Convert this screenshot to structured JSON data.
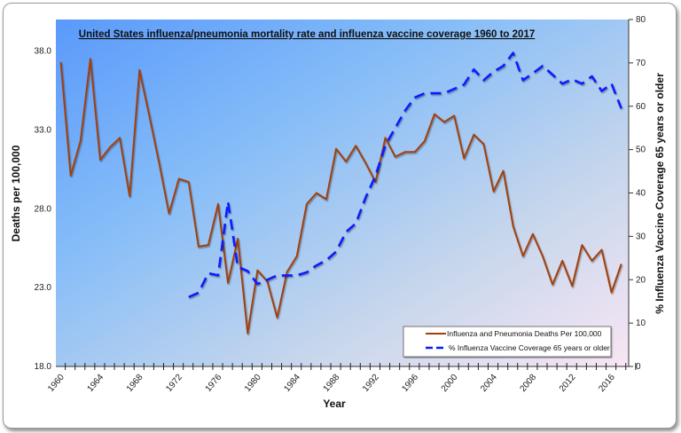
{
  "chart_data": {
    "type": "line",
    "title": "United States influenza/pneumonia mortality rate and influenza vaccine coverage 1960 to 2017",
    "xlabel": "Year",
    "ylabel": "Deaths per 100,000",
    "y2label": "% Influenza Vaccine Coverage 65 years or older",
    "xlim": [
      1960,
      2017
    ],
    "ylim": [
      18,
      40
    ],
    "y2lim": [
      0,
      80
    ],
    "x_tick_labels": [
      "1960",
      "1964",
      "1968",
      "1972",
      "1976",
      "1980",
      "1984",
      "1988",
      "1992",
      "1996",
      "2000",
      "2004",
      "2008",
      "2012",
      "2016"
    ],
    "y_tick_labels": [
      "18.0",
      "23.0",
      "28.0",
      "33.0",
      "38.0"
    ],
    "y2_tick_labels": [
      "0",
      "10",
      "20",
      "30",
      "40",
      "50",
      "60",
      "70",
      "80"
    ],
    "legend_position": "bottom-right",
    "grid": false,
    "series": [
      {
        "name": "Influenza and Pneumonia Deaths Per 100,000",
        "axis": "left",
        "color": "#a0400f",
        "style": "solid",
        "x": [
          1960,
          1961,
          1962,
          1963,
          1964,
          1965,
          1966,
          1967,
          1968,
          1969,
          1970,
          1971,
          1972,
          1973,
          1974,
          1975,
          1976,
          1977,
          1978,
          1979,
          1980,
          1981,
          1982,
          1983,
          1984,
          1985,
          1986,
          1987,
          1988,
          1989,
          1990,
          1991,
          1992,
          1993,
          1994,
          1995,
          1996,
          1997,
          1998,
          1999,
          2000,
          2001,
          2002,
          2003,
          2004,
          2005,
          2006,
          2007,
          2008,
          2009,
          2010,
          2011,
          2012,
          2013,
          2014,
          2015,
          2016,
          2017
        ],
        "values": [
          37.3,
          30.1,
          32.3,
          37.5,
          31.1,
          31.9,
          32.5,
          28.8,
          36.8,
          33.9,
          30.9,
          27.7,
          29.9,
          29.7,
          25.6,
          25.7,
          28.3,
          23.3,
          26.1,
          20.1,
          24.1,
          23.4,
          21.1,
          24.0,
          25.0,
          28.3,
          29.0,
          28.6,
          31.8,
          31.0,
          32.0,
          30.9,
          29.7,
          32.5,
          31.3,
          31.6,
          31.6,
          32.3,
          34.0,
          33.5,
          33.9,
          31.2,
          32.7,
          32.1,
          29.1,
          30.4,
          26.9,
          25.0,
          26.4,
          25.0,
          23.2,
          24.7,
          23.1,
          25.7,
          24.7,
          25.4,
          22.7,
          24.5
        ]
      },
      {
        "name": "% Influenza Vaccine Coverage 65 years or older",
        "axis": "right",
        "color": "#0a1aff",
        "style": "dashed",
        "x": [
          1973,
          1974,
          1975,
          1976,
          1977,
          1978,
          1979,
          1980,
          1981,
          1982,
          1983,
          1984,
          1985,
          1986,
          1987,
          1988,
          1989,
          1990,
          1991,
          1992,
          1993,
          1994,
          1995,
          1996,
          1997,
          1998,
          1999,
          2000,
          2001,
          2002,
          2003,
          2004,
          2005,
          2006,
          2007,
          2008,
          2009,
          2010,
          2011,
          2012,
          2013,
          2014,
          2015,
          2016,
          2017
        ],
        "values": [
          16,
          17,
          21.5,
          21,
          38,
          23,
          22,
          19,
          20,
          21,
          21,
          21,
          21.7,
          23.3,
          24.5,
          26.5,
          31,
          33,
          39,
          44,
          51,
          55,
          59,
          62,
          63,
          63,
          63,
          64,
          65,
          68.5,
          66,
          68,
          69.3,
          72.3,
          66,
          67.6,
          69.3,
          67.3,
          65.2,
          66.2,
          65.2,
          66.9,
          63.5,
          65.2,
          59.5
        ]
      }
    ]
  }
}
